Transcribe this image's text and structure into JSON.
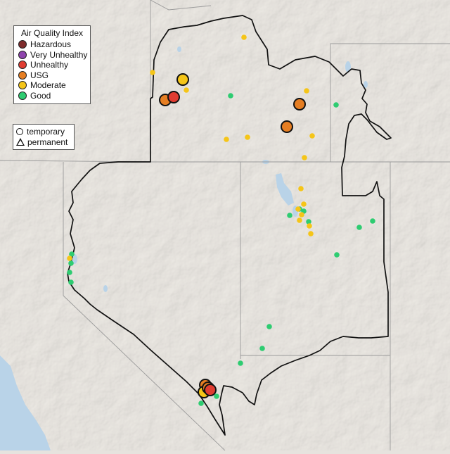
{
  "legend": {
    "title": "Air Quality Index",
    "categories": [
      {
        "label": "Hazardous",
        "color": "#7e2b2b"
      },
      {
        "label": "Very Unhealthy",
        "color": "#8e44ad"
      },
      {
        "label": "Unhealthy",
        "color": "#e03c31"
      },
      {
        "label": "USG",
        "color": "#e67e22"
      },
      {
        "label": "Moderate",
        "color": "#f5c518"
      },
      {
        "label": "Good",
        "color": "#2ecc71"
      }
    ]
  },
  "shape_legend": {
    "items": [
      {
        "label": "temporary",
        "shape": "circle"
      },
      {
        "label": "permanent",
        "shape": "triangle"
      }
    ]
  },
  "map": {
    "background": "#e6e3de",
    "water_color": "#b9d3e8",
    "border_color": "#111111"
  }
}
